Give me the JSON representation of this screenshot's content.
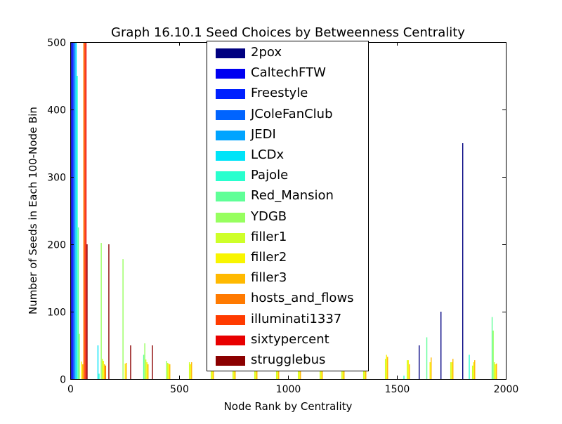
{
  "chart_data": {
    "type": "bar",
    "title": "Graph 16.10.1 Seed Choices by Betweenness Centrality",
    "xlabel": "Node Rank by Centrality",
    "ylabel": "Number of Seeds in Each 100-Node Bin",
    "xlim": [
      0,
      2000
    ],
    "ylim": [
      0,
      500
    ],
    "xticks": [
      "0",
      "500",
      "1000",
      "1500",
      "2000"
    ],
    "yticks": [
      "0",
      "100",
      "200",
      "300",
      "400",
      "500"
    ],
    "grid": false,
    "legend_position": "top-center",
    "bin_size": 100,
    "bins": [
      0,
      100,
      200,
      300,
      400,
      500,
      600,
      700,
      800,
      900,
      1000,
      1100,
      1200,
      1300,
      1400,
      1500,
      1600,
      1700,
      1800,
      1900
    ],
    "series": [
      {
        "name": "2pox",
        "color": "#000080",
        "values": [
          500,
          0,
          0,
          0,
          0,
          0,
          0,
          0,
          0,
          0,
          0,
          0,
          0,
          0,
          0,
          0,
          50,
          100,
          350,
          0
        ]
      },
      {
        "name": "CaltechFTW",
        "color": "#0000f1",
        "values": [
          500,
          0,
          0,
          0,
          0,
          0,
          0,
          0,
          0,
          0,
          0,
          0,
          0,
          0,
          0,
          0,
          0,
          0,
          0,
          0
        ]
      },
      {
        "name": "Freestyle",
        "color": "#0020ff",
        "values": [
          500,
          0,
          0,
          0,
          0,
          0,
          0,
          0,
          0,
          0,
          0,
          0,
          0,
          0,
          0,
          0,
          0,
          0,
          0,
          0
        ]
      },
      {
        "name": "JColeFanClub",
        "color": "#0064ff",
        "values": [
          500,
          0,
          0,
          0,
          0,
          0,
          0,
          0,
          0,
          0,
          0,
          0,
          0,
          0,
          0,
          0,
          0,
          0,
          0,
          0
        ]
      },
      {
        "name": "JEDI",
        "color": "#00a4ff",
        "values": [
          500,
          0,
          0,
          0,
          0,
          0,
          0,
          0,
          0,
          0,
          0,
          0,
          0,
          0,
          0,
          0,
          0,
          0,
          0,
          0
        ]
      },
      {
        "name": "LCDx",
        "color": "#00e4f8",
        "values": [
          500,
          50,
          0,
          0,
          0,
          0,
          0,
          0,
          0,
          0,
          0,
          0,
          0,
          0,
          0,
          0,
          0,
          0,
          0,
          0
        ]
      },
      {
        "name": "Pajole",
        "color": "#29ffce",
        "values": [
          450,
          8,
          0,
          0,
          0,
          0,
          0,
          0,
          0,
          0,
          0,
          0,
          0,
          0,
          0,
          5,
          0,
          0,
          36,
          0
        ]
      },
      {
        "name": "Red_Mansion",
        "color": "#5fff97",
        "values": [
          225,
          0,
          0,
          36,
          0,
          0,
          0,
          0,
          0,
          0,
          0,
          0,
          0,
          0,
          0,
          0,
          62,
          0,
          0,
          92
        ]
      },
      {
        "name": "YDGB",
        "color": "#97ff5f",
        "values": [
          67,
          202,
          178,
          53,
          27,
          0,
          0,
          0,
          0,
          0,
          0,
          0,
          0,
          0,
          0,
          0,
          0,
          0,
          0,
          72
        ]
      },
      {
        "name": "filler1",
        "color": "#ceff29",
        "values": [
          0,
          30,
          0,
          29,
          24,
          25,
          30,
          25,
          25,
          25,
          25,
          25,
          25,
          25,
          30,
          28,
          0,
          25,
          20,
          25
        ]
      },
      {
        "name": "filler2",
        "color": "#f8f500",
        "values": [
          26,
          27,
          23,
          25,
          23,
          22,
          25,
          25,
          25,
          25,
          25,
          25,
          25,
          25,
          36,
          28,
          25,
          25,
          25,
          22
        ]
      },
      {
        "name": "filler3",
        "color": "#ffb900",
        "values": [
          22,
          22,
          24,
          22,
          22,
          25,
          25,
          25,
          25,
          25,
          25,
          25,
          25,
          25,
          33,
          22,
          32,
          30,
          28,
          23
        ]
      },
      {
        "name": "hosts_and_flows",
        "color": "#ff7a00",
        "values": [
          500,
          20,
          0,
          0,
          0,
          0,
          0,
          0,
          0,
          0,
          0,
          0,
          0,
          0,
          0,
          0,
          0,
          0,
          0,
          0
        ]
      },
      {
        "name": "illuminati1337",
        "color": "#ff3b00",
        "values": [
          500,
          0,
          0,
          0,
          0,
          0,
          0,
          0,
          0,
          0,
          0,
          0,
          0,
          0,
          0,
          0,
          0,
          0,
          0,
          0
        ]
      },
      {
        "name": "sixtypercent",
        "color": "#e80000",
        "values": [
          500,
          0,
          0,
          0,
          0,
          0,
          0,
          0,
          0,
          0,
          0,
          0,
          0,
          0,
          0,
          0,
          0,
          0,
          0,
          0
        ]
      },
      {
        "name": "strugglebus",
        "color": "#8b0000",
        "values": [
          200,
          200,
          50,
          50,
          0,
          0,
          0,
          0,
          0,
          0,
          0,
          0,
          0,
          0,
          0,
          0,
          0,
          0,
          0,
          0
        ]
      }
    ]
  }
}
